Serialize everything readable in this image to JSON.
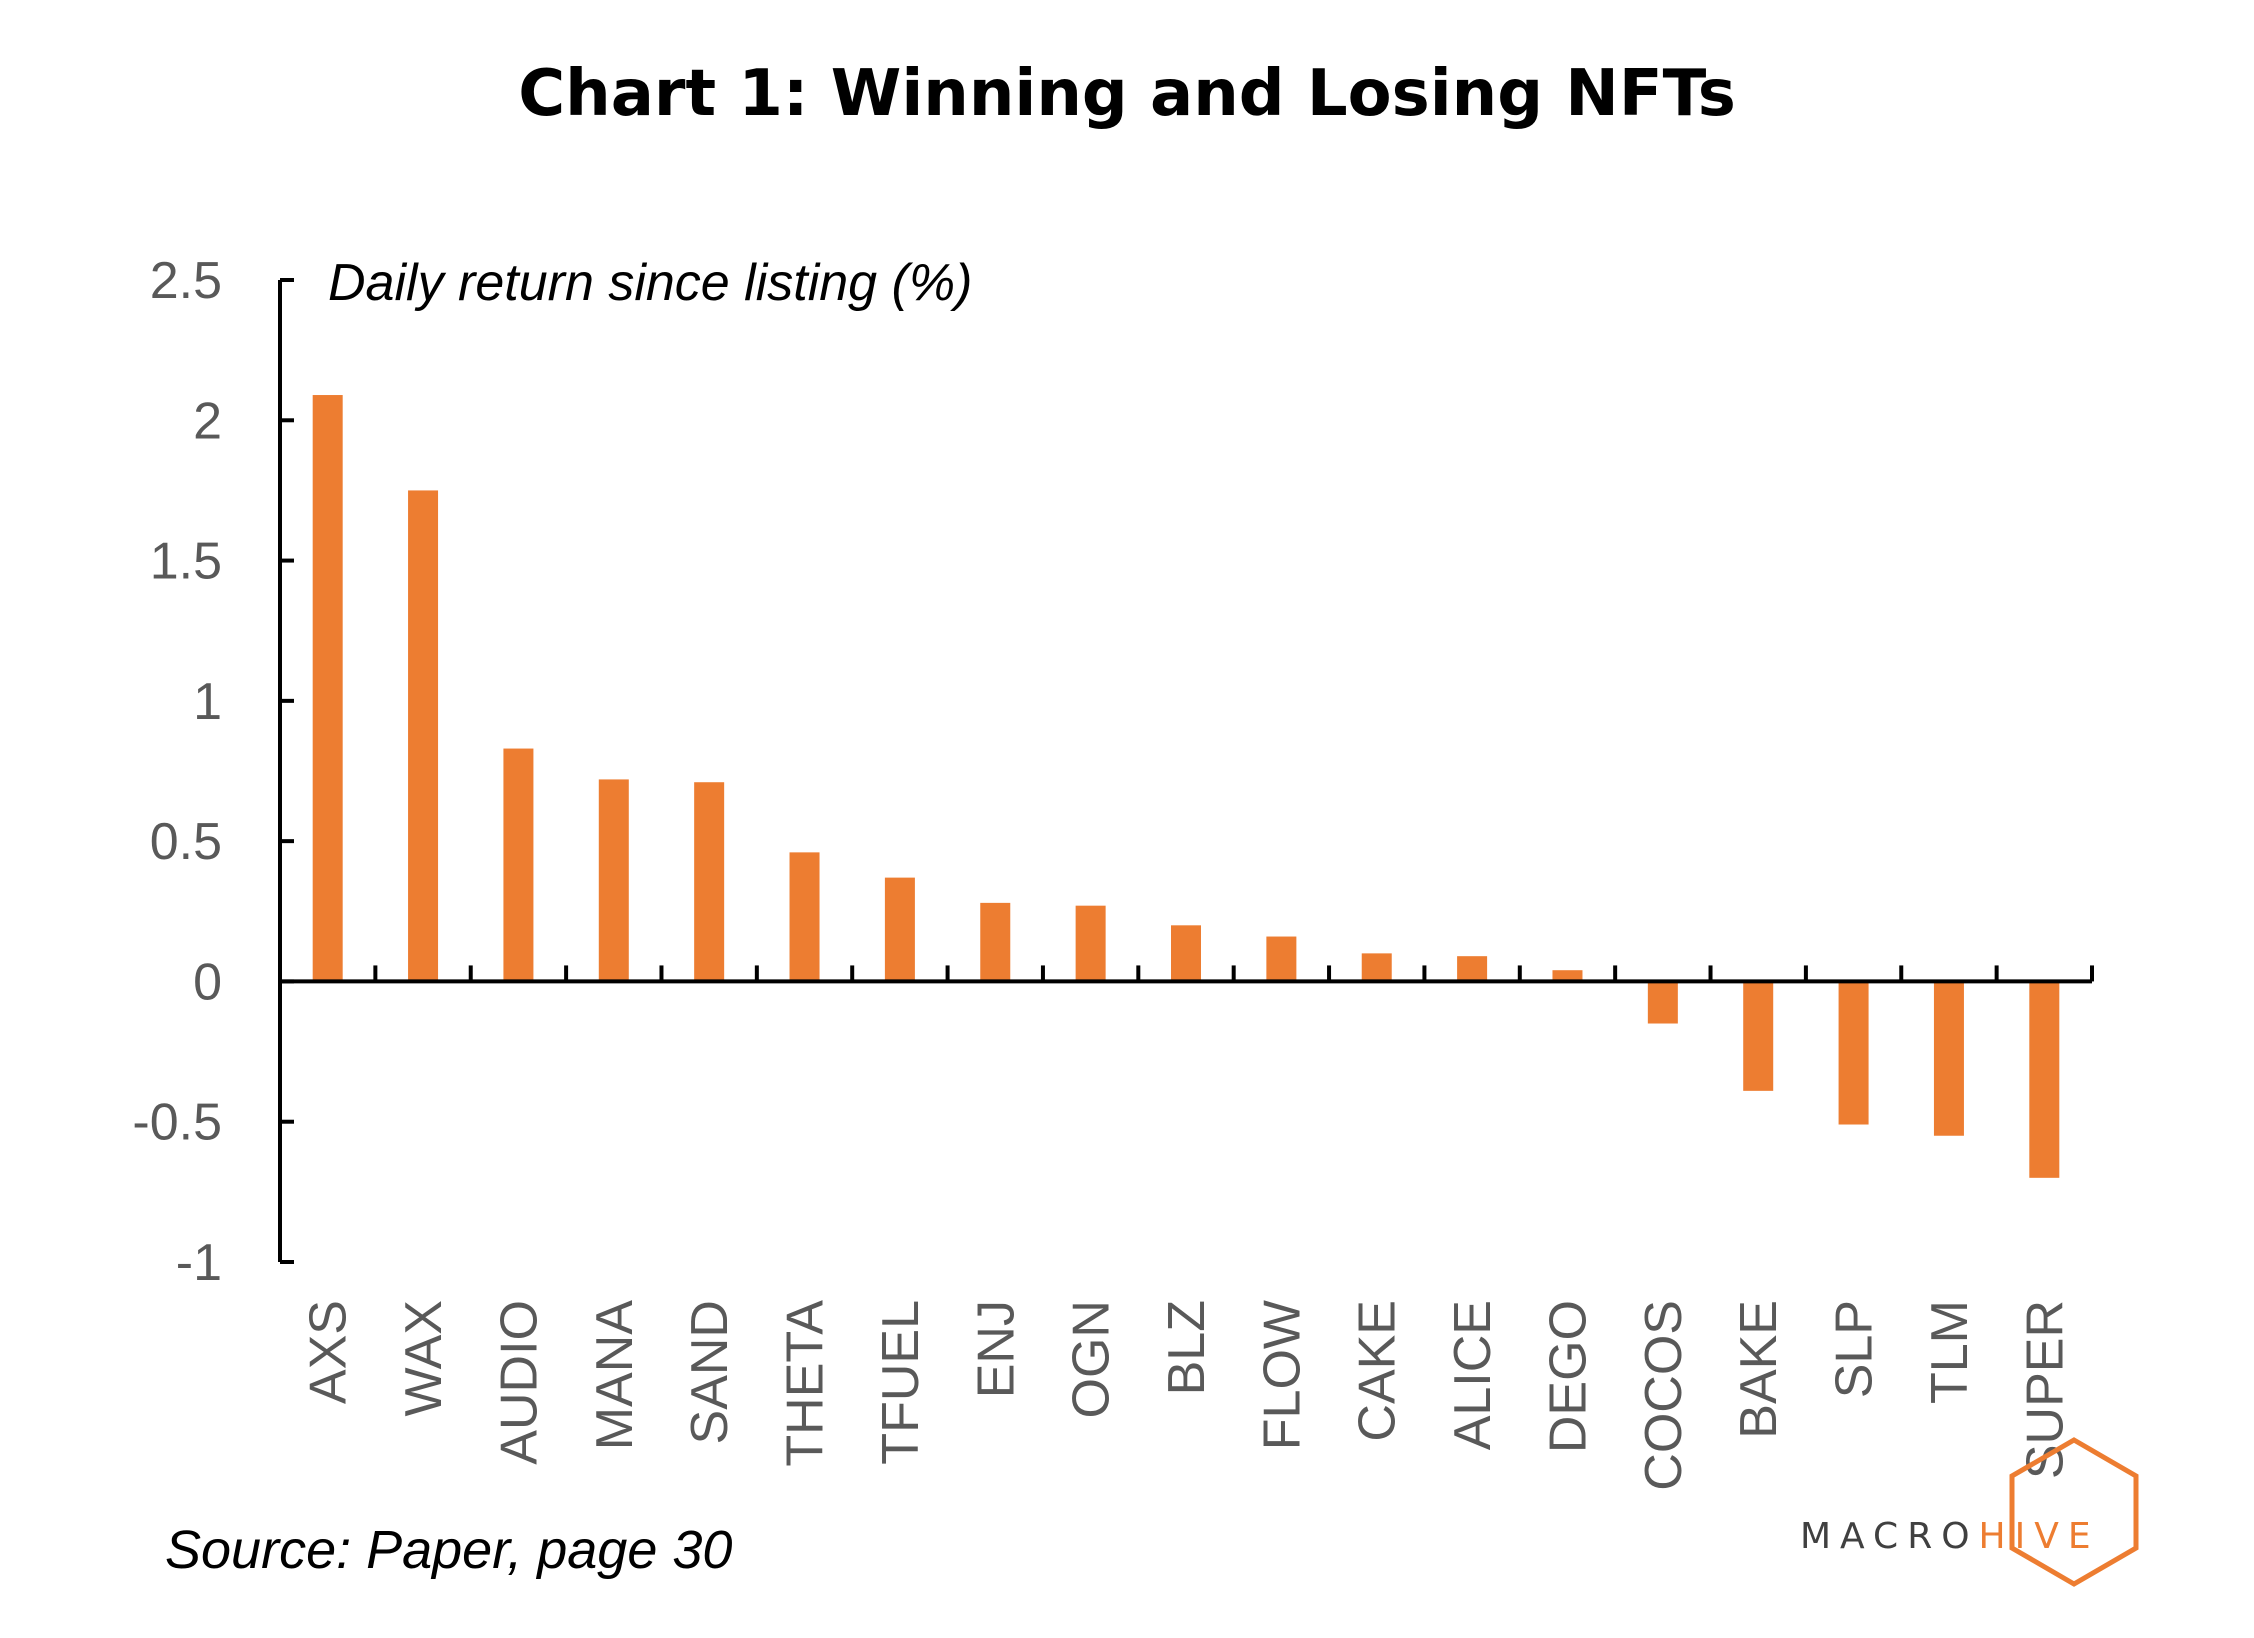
{
  "chart_data": {
    "type": "bar",
    "title": "Chart 1: Winning and Losing NFTs",
    "ylabel": "Daily return since listing (%)",
    "xlabel": "",
    "ylim": [
      -1,
      2.5
    ],
    "yticks": [
      "2.5",
      "2",
      "1.5",
      "1",
      "0.5",
      "0",
      "-0.5",
      "-1"
    ],
    "ytick_values": [
      2.5,
      2,
      1.5,
      1,
      0.5,
      0,
      -0.5,
      -1
    ],
    "grid": false,
    "legend": "none",
    "categories": [
      "AXS",
      "WAX",
      "AUDIO",
      "MANA",
      "SAND",
      "THETA",
      "TFUEL",
      "ENJ",
      "OGN",
      "BLZ",
      "FLOW",
      "CAKE",
      "ALICE",
      "DEGO",
      "COCOS",
      "BAKE",
      "SLP",
      "TLM",
      "SUPER"
    ],
    "values": [
      2.09,
      1.75,
      0.83,
      0.72,
      0.71,
      0.46,
      0.37,
      0.28,
      0.27,
      0.2,
      0.16,
      0.1,
      0.09,
      0.04,
      -0.15,
      -0.39,
      -0.51,
      -0.55,
      -0.7
    ],
    "bar_color": "#ED7D31"
  },
  "source": "Source: Paper, page 30",
  "logo": {
    "text_left": "MACRO",
    "text_right": "HIVE",
    "color_left": "#404040",
    "color_right": "#ED7D31"
  }
}
